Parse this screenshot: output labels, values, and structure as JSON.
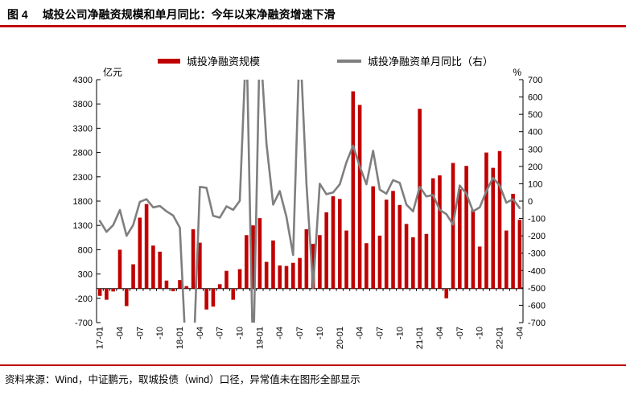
{
  "header": {
    "figure_label": "图 4",
    "title": "城投公司净融资规模和单月同比：今年以来净融资增速下滑"
  },
  "legend": {
    "bar_label": "城投净融资规模",
    "line_label": "城投净融资单月同比（右）"
  },
  "footer": {
    "source": "资料来源：Wind，中证鹏元，取城投债（wind）口径，异常值未在图形全部显示"
  },
  "colors": {
    "bar": "#c00000",
    "line": "#7f7f7f",
    "axis": "#000000",
    "rule": "#c00000"
  },
  "chart_data": {
    "type": "bar",
    "subtype": "combo-bar-line-dual-axis",
    "title": "城投公司净融资规模和单月同比",
    "left_axis": {
      "title": "亿元",
      "min": -700,
      "max": 4300,
      "step": 500
    },
    "right_axis": {
      "title": "%",
      "min": -700,
      "max": 700,
      "step": 100
    },
    "x_tick_labels": [
      "17-01",
      "-04",
      "-07",
      "-10",
      "18-01",
      "-04",
      "-07",
      "-10",
      "19-01",
      "-04",
      "-07",
      "-10",
      "20-01",
      "-04",
      "-07",
      "-10",
      "21-01",
      "-04",
      "-07",
      "-10",
      "22-01",
      "-04"
    ],
    "categories": [
      "17-01",
      "17-02",
      "17-03",
      "17-04",
      "17-05",
      "17-06",
      "17-07",
      "17-08",
      "17-09",
      "17-10",
      "17-11",
      "17-12",
      "18-01",
      "18-02",
      "18-03",
      "18-04",
      "18-05",
      "18-06",
      "18-07",
      "18-08",
      "18-09",
      "18-10",
      "18-11",
      "18-12",
      "19-01",
      "19-02",
      "19-03",
      "19-04",
      "19-05",
      "19-06",
      "19-07",
      "19-08",
      "19-09",
      "19-10",
      "19-11",
      "19-12",
      "20-01",
      "20-02",
      "20-03",
      "20-04",
      "20-05",
      "20-06",
      "20-07",
      "20-08",
      "20-09",
      "20-10",
      "20-11",
      "20-12",
      "21-01",
      "21-02",
      "21-03",
      "21-04",
      "21-05",
      "21-06",
      "21-07",
      "21-08",
      "21-09",
      "21-10",
      "21-11",
      "21-12",
      "22-01",
      "22-02",
      "22-03",
      "22-04"
    ],
    "series": [
      {
        "name": "城投净融资规模",
        "type": "bar",
        "axis": "left",
        "unit": "亿元",
        "values": [
          -150,
          -230,
          -60,
          800,
          -360,
          500,
          1460,
          1740,
          885,
          760,
          165,
          -55,
          175,
          50,
          1220,
          945,
          -430,
          -370,
          90,
          365,
          -230,
          400,
          1100,
          1300,
          1450,
          550,
          990,
          475,
          465,
          530,
          630,
          1220,
          920,
          1100,
          1570,
          1900,
          1845,
          1195,
          4060,
          3780,
          935,
          2105,
          1090,
          1830,
          2010,
          1720,
          1330,
          1055,
          3700,
          1125,
          2270,
          2330,
          -200,
          2585,
          2045,
          2525,
          1625,
          865,
          2800,
          2485,
          2830,
          1195,
          1950,
          1415
        ]
      },
      {
        "name": "城投净融资单月同比（右）",
        "type": "line",
        "axis": "right",
        "unit": "%",
        "note": "异常值未在图形全部显示（超出±700的值被截断）",
        "values": [
          -114,
          -177,
          -138,
          -51,
          -200,
          -138,
          -4,
          11,
          -36,
          -28,
          -59,
          -83,
          -153,
          -950,
          -950,
          82,
          77,
          -85,
          -95,
          -30,
          -50,
          2,
          950,
          -950,
          950,
          330,
          -20,
          58,
          -91,
          -310,
          950,
          97,
          -500,
          100,
          40,
          50,
          97,
          223,
          320,
          200,
          97,
          290,
          66,
          43,
          121,
          105,
          -20,
          -59,
          82,
          27,
          35,
          -51,
          -75,
          -135,
          90,
          43,
          -59,
          -36,
          58,
          134,
          90,
          -9,
          11,
          -40
        ]
      }
    ],
    "grid": false,
    "legend_position": "top-center"
  }
}
